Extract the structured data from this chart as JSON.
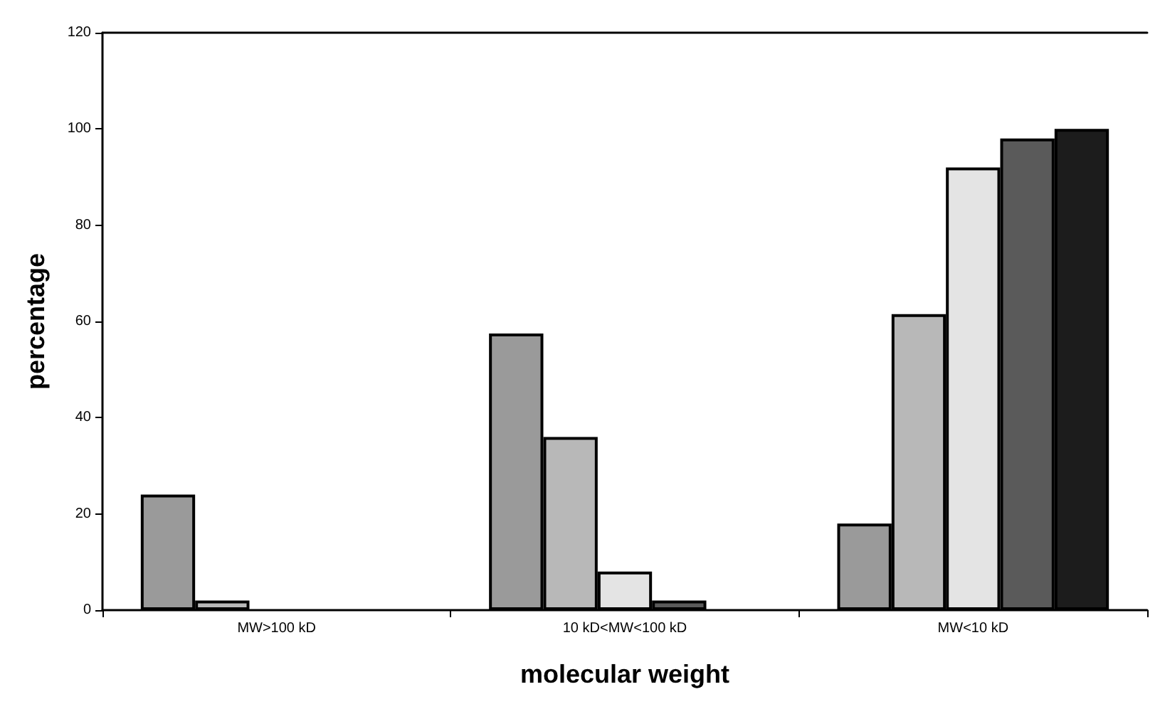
{
  "chart_data": {
    "type": "bar",
    "xlabel": "molecular weight",
    "ylabel": "percentage",
    "categories": [
      "MW>100 kD",
      "10 kD<MW<100 kD",
      "MW<10 kD"
    ],
    "series": [
      {
        "color": "#9a9a9a",
        "values": [
          24,
          57.5,
          18
        ]
      },
      {
        "color": "#b8b8b8",
        "values": [
          2,
          36,
          61.5
        ]
      },
      {
        "color": "#e4e4e4",
        "values": [
          null,
          8,
          92
        ]
      },
      {
        "color": "#5a5a5a",
        "values": [
          null,
          2,
          98
        ]
      },
      {
        "color": "#1c1c1c",
        "values": [
          null,
          null,
          100
        ]
      }
    ],
    "ylim": [
      0,
      120
    ],
    "yticks": [
      0,
      20,
      40,
      60,
      80,
      100,
      120
    ],
    "grid": false
  }
}
